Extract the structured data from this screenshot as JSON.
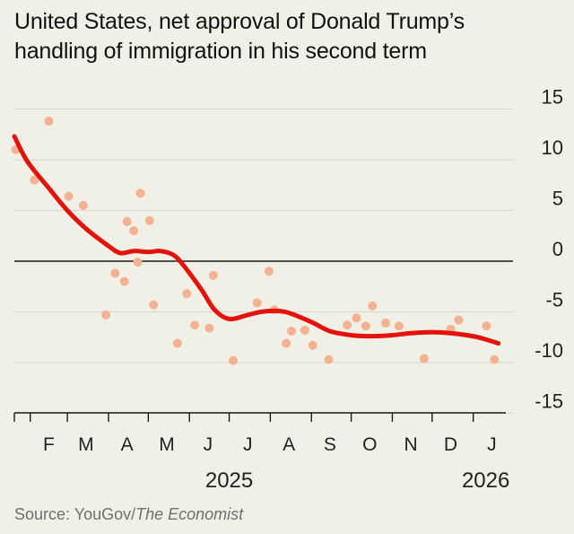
{
  "title": "United States, net approval of Donald Trump’s handling of immigration in his second term",
  "source": {
    "prefix": "Source: YouGov/",
    "publication": "The Economist"
  },
  "colors": {
    "background": "#f1f0e6",
    "trend_line": "#e3120b",
    "points": "#f3b393",
    "gridline": "#d7d6cc",
    "zero_line": "#1a1a1a"
  },
  "chart_data": {
    "type": "scatter",
    "title": "United States, net approval of Donald Trump’s handling of immigration in his second term",
    "xlabel": "",
    "ylabel": "",
    "ylim": [
      -15,
      15
    ],
    "y_ticks": [
      15,
      10,
      5,
      0,
      -5,
      -10,
      -15
    ],
    "y_tick_labels": [
      "15",
      "10",
      "5",
      "0",
      "-5",
      "-10",
      "-15"
    ],
    "x_range": [
      "2025-01-20",
      "2026-01-31"
    ],
    "x_month_labels": [
      {
        "label": "F",
        "date": "2025-02-15"
      },
      {
        "label": "M",
        "date": "2025-03-15"
      },
      {
        "label": "A",
        "date": "2025-04-15"
      },
      {
        "label": "M",
        "date": "2025-05-15"
      },
      {
        "label": "J",
        "date": "2025-06-15"
      },
      {
        "label": "J",
        "date": "2025-07-15"
      },
      {
        "label": "A",
        "date": "2025-08-15"
      },
      {
        "label": "S",
        "date": "2025-09-15"
      },
      {
        "label": "O",
        "date": "2025-10-15"
      },
      {
        "label": "N",
        "date": "2025-11-15"
      },
      {
        "label": "D",
        "date": "2025-12-15"
      },
      {
        "label": "J",
        "date": "2026-01-15"
      }
    ],
    "month_boundaries": [
      "2025-02-01",
      "2025-03-01",
      "2025-04-01",
      "2025-05-01",
      "2025-06-01",
      "2025-07-01",
      "2025-08-01",
      "2025-09-01",
      "2025-10-01",
      "2025-11-01",
      "2025-12-01",
      "2026-01-01"
    ],
    "year_labels": [
      {
        "label": "2025",
        "date": "2025-07-01"
      },
      {
        "label": "2026",
        "date": "2026-01-01"
      }
    ],
    "grid": true,
    "legend": "none",
    "series": [
      {
        "kind": "points",
        "x": [
          "2025-01-21",
          "2025-02-04",
          "2025-02-15",
          "2025-03-02",
          "2025-03-13",
          "2025-03-30",
          "2025-04-06",
          "2025-04-13",
          "2025-04-15",
          "2025-04-20",
          "2025-04-23",
          "2025-04-25",
          "2025-05-02",
          "2025-05-05",
          "2025-05-23",
          "2025-05-30",
          "2025-06-05",
          "2025-06-16",
          "2025-06-19",
          "2025-07-04",
          "2025-07-22",
          "2025-07-31",
          "2025-08-04",
          "2025-08-13",
          "2025-08-17",
          "2025-08-27",
          "2025-09-02",
          "2025-09-14",
          "2025-09-28",
          "2025-10-05",
          "2025-10-12",
          "2025-10-17",
          "2025-10-27",
          "2025-11-06",
          "2025-11-25",
          "2025-12-15",
          "2025-12-21",
          "2026-01-11",
          "2026-01-17"
        ],
        "values": [
          11,
          8,
          13.8,
          6.4,
          5.5,
          -5.3,
          -1.2,
          -2,
          3.9,
          3,
          -0.1,
          6.7,
          4,
          -4.3,
          -8.1,
          -3.2,
          -6.3,
          -6.6,
          -1.4,
          -9.8,
          -4.1,
          -1,
          -4.8,
          -8.1,
          -6.9,
          -6.8,
          -8.3,
          -9.7,
          -6.3,
          -5.6,
          -6.4,
          -4.4,
          -6.1,
          -6.4,
          -9.6,
          -6.7,
          -5.8,
          -6.4,
          -9.7
        ]
      },
      {
        "kind": "trend",
        "x": [
          "2025-01-20",
          "2025-01-30",
          "2025-02-15",
          "2025-03-01",
          "2025-03-15",
          "2025-04-01",
          "2025-04-10",
          "2025-04-20",
          "2025-05-01",
          "2025-05-10",
          "2025-05-20",
          "2025-05-28",
          "2025-06-10",
          "2025-06-20",
          "2025-07-01",
          "2025-07-15",
          "2025-07-25",
          "2025-08-05",
          "2025-08-15",
          "2025-09-01",
          "2025-09-15",
          "2025-10-01",
          "2025-10-15",
          "2025-11-01",
          "2025-11-15",
          "2025-12-01",
          "2025-12-15",
          "2026-01-01",
          "2026-01-10",
          "2026-01-20"
        ],
        "values": [
          12.3,
          9.8,
          7.2,
          5,
          3.2,
          1.5,
          0.8,
          1,
          0.9,
          1,
          0.6,
          -0.5,
          -2.8,
          -4.8,
          -5.7,
          -5.3,
          -5,
          -4.9,
          -5.1,
          -6,
          -6.9,
          -7.3,
          -7.4,
          -7.3,
          -7.1,
          -7,
          -7.1,
          -7.4,
          -7.7,
          -8.1
        ]
      }
    ]
  }
}
